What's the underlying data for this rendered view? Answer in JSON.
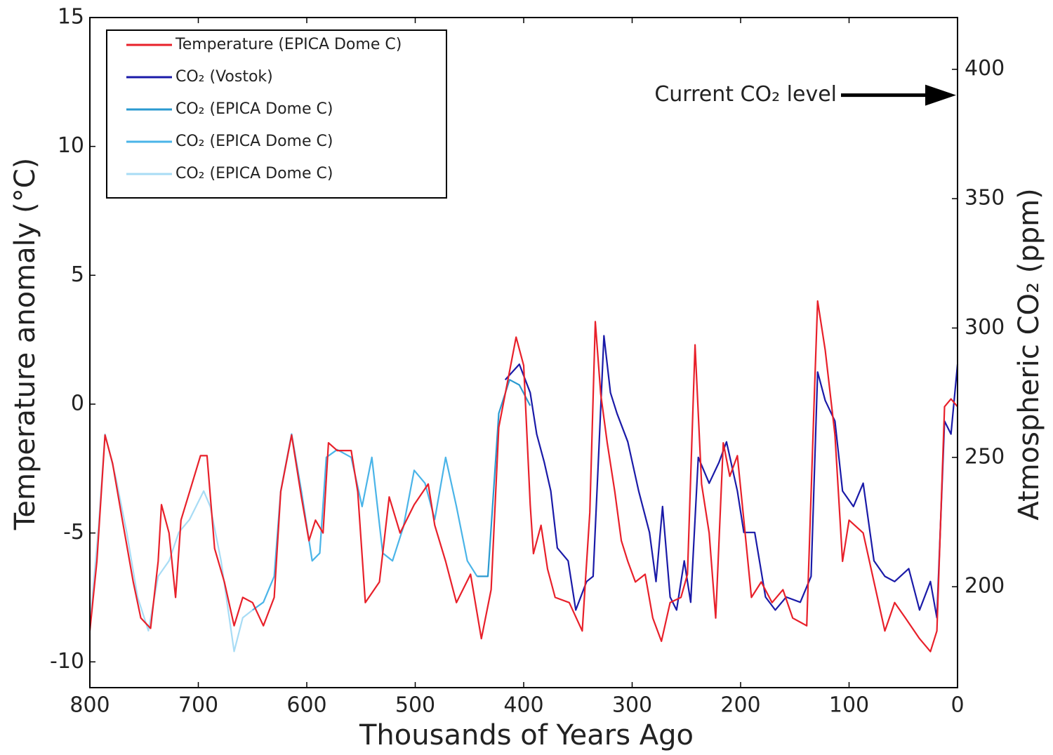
{
  "chart_data": {
    "type": "line",
    "xlabel": "Thousands of Years Ago",
    "ylabel": "Temperature anomaly (°C)",
    "y2label": "Atmospheric CO₂ (ppm)",
    "xlim": [
      800,
      0
    ],
    "xticks": [
      800,
      700,
      600,
      500,
      400,
      300,
      200,
      100,
      0
    ],
    "ylim": [
      -11,
      15
    ],
    "yticks": [
      -10,
      -5,
      0,
      5,
      10,
      15
    ],
    "y2lim": [
      161,
      420
    ],
    "y2ticks": [
      200,
      250,
      300,
      350,
      400
    ],
    "legend": "upper left",
    "annotation": {
      "text": "Current CO₂ level",
      "value": 390,
      "axis": "y2"
    },
    "series": [
      {
        "name": "Temperature (EPICA Dome C)",
        "color": "#e8202a",
        "axis": "y",
        "x": [
          800,
          793.5,
          786,
          779,
          770,
          760,
          753,
          744,
          737,
          734,
          727,
          721,
          716,
          708,
          698,
          692,
          685,
          676,
          667,
          659,
          650,
          640,
          630,
          624,
          614,
          605,
          598,
          592,
          585,
          580,
          572,
          559,
          553,
          546,
          533,
          524,
          514,
          501,
          488,
          482,
          472,
          462,
          449,
          439,
          430,
          423,
          417,
          407,
          400,
          394,
          391,
          384,
          378,
          371,
          358,
          346,
          339,
          334,
          329,
          323,
          316,
          310,
          304,
          297,
          288,
          281,
          273,
          265,
          255,
          249,
          242,
          236,
          229,
          223,
          216,
          210,
          203,
          197,
          190,
          181,
          171,
          161,
          152,
          139,
          132,
          129,
          122,
          113,
          106,
          100,
          87,
          77,
          67,
          58,
          48,
          35,
          25,
          19,
          12,
          6,
          0
        ],
        "values": [
          -8.8,
          -6.1,
          -1.2,
          -2.3,
          -4.5,
          -6.9,
          -8.3,
          -8.7,
          -6.1,
          -3.9,
          -5.0,
          -7.5,
          -4.5,
          -3.4,
          -2.0,
          -2.0,
          -5.6,
          -6.9,
          -8.6,
          -7.5,
          -7.7,
          -8.6,
          -7.5,
          -3.4,
          -1.2,
          -3.6,
          -5.3,
          -4.5,
          -5.0,
          -1.5,
          -1.8,
          -1.8,
          -3.4,
          -7.7,
          -6.9,
          -3.6,
          -5.0,
          -3.9,
          -3.1,
          -4.7,
          -6.1,
          -7.7,
          -6.6,
          -9.1,
          -7.2,
          -0.9,
          0.4,
          2.6,
          1.5,
          -3.9,
          -5.8,
          -4.7,
          -6.4,
          -7.5,
          -7.7,
          -8.8,
          -4.2,
          3.2,
          0.4,
          -1.5,
          -3.4,
          -5.3,
          -6.1,
          -6.9,
          -6.6,
          -8.3,
          -9.2,
          -7.7,
          -7.5,
          -6.6,
          2.3,
          -3.1,
          -5.0,
          -8.3,
          -1.5,
          -2.8,
          -2.0,
          -4.5,
          -7.5,
          -6.9,
          -7.7,
          -7.2,
          -8.3,
          -8.6,
          0.4,
          4.0,
          2.1,
          -1.2,
          -6.1,
          -4.5,
          -5.0,
          -6.9,
          -8.8,
          -7.7,
          -8.3,
          -9.1,
          -9.6,
          -8.8,
          -0.1,
          0.2,
          -0.1
        ]
      },
      {
        "name": "CO₂ (Vostok)",
        "color": "#1a1aa8",
        "axis": "y2",
        "x": [
          417,
          404,
          394,
          388,
          381,
          375,
          369,
          359,
          352,
          342,
          336,
          331,
          326,
          320,
          314,
          304,
          294,
          284,
          278,
          272,
          265,
          259,
          252,
          246,
          239,
          229,
          220,
          213,
          203,
          197,
          187,
          177,
          168,
          158,
          145,
          135,
          129,
          122,
          113,
          106,
          96,
          87,
          77,
          67,
          58,
          45,
          35,
          25,
          19,
          12,
          6,
          0
        ],
        "values": [
          280,
          286,
          275,
          259,
          248,
          237,
          215,
          210,
          191,
          202,
          204,
          250,
          297,
          275,
          267,
          256,
          237,
          221,
          202,
          231,
          196,
          191,
          210,
          194,
          250,
          240,
          248,
          256,
          237,
          221,
          221,
          196,
          191,
          196,
          194,
          204,
          283,
          272,
          264,
          237,
          231,
          240,
          210,
          204,
          202,
          207,
          191,
          202,
          188,
          264,
          259,
          286
        ]
      },
      {
        "name": "CO₂ (EPICA Dome C)",
        "color": "#2a9ad0",
        "axis": "y2",
        "x": [
          443,
          433,
          423,
          413,
          404,
          394
        ],
        "values": [
          204,
          204,
          267,
          280,
          278,
          270
        ]
      },
      {
        "name": "CO₂ (EPICA Dome C)",
        "color": "#4ab4e8",
        "axis": "y2",
        "x": [
          650,
          640,
          630,
          624,
          614,
          605,
          595,
          588,
          582,
          572,
          559,
          549,
          540,
          530,
          521,
          511,
          501,
          491,
          482,
          472,
          462,
          452,
          443
        ],
        "values": [
          191,
          194,
          204,
          237,
          259,
          237,
          210,
          213,
          250,
          253,
          250,
          231,
          250,
          213,
          210,
          223,
          245,
          240,
          226,
          250,
          231,
          210,
          204
        ]
      },
      {
        "name": "CO₂ (EPICA Dome C)",
        "color": "#a8dcf5",
        "axis": "y2",
        "x": [
          800,
          792,
          786,
          776,
          766,
          756,
          746,
          737,
          727,
          718,
          708,
          695,
          689,
          679,
          667,
          659,
          650
        ],
        "values": [
          185,
          223,
          259,
          242,
          221,
          196,
          183,
          204,
          210,
          221,
          226,
          237,
          231,
          210,
          175,
          188,
          191
        ]
      }
    ]
  }
}
